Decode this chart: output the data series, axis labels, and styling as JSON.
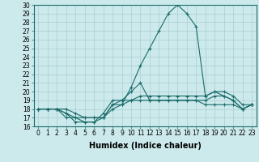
{
  "xlabel": "Humidex (Indice chaleur)",
  "ylabel": "",
  "xlim": [
    -0.5,
    23.5
  ],
  "ylim": [
    16,
    30
  ],
  "background_color": "#cce9eb",
  "grid_color": "#aacfd2",
  "line_color": "#1a6b6b",
  "xtick_labels": [
    "0",
    "1",
    "2",
    "3",
    "4",
    "5",
    "6",
    "7",
    "8",
    "9",
    "10",
    "11",
    "12",
    "13",
    "14",
    "15",
    "16",
    "17",
    "18",
    "19",
    "20",
    "21",
    "22",
    "23"
  ],
  "xticks": [
    0,
    1,
    2,
    3,
    4,
    5,
    6,
    7,
    8,
    9,
    10,
    11,
    12,
    13,
    14,
    15,
    16,
    17,
    18,
    19,
    20,
    21,
    22,
    23
  ],
  "yticks": [
    16,
    17,
    18,
    19,
    20,
    21,
    22,
    23,
    24,
    25,
    26,
    27,
    28,
    29,
    30
  ],
  "series": [
    [
      18.0,
      18.0,
      18.0,
      17.5,
      16.5,
      16.5,
      16.5,
      17.0,
      18.5,
      18.5,
      20.5,
      23.0,
      25.0,
      27.0,
      29.0,
      30.0,
      29.0,
      27.5,
      19.5,
      20.0,
      19.5,
      19.0,
      18.0,
      18.5
    ],
    [
      18.0,
      18.0,
      18.0,
      17.5,
      17.0,
      16.5,
      16.5,
      17.5,
      19.0,
      19.0,
      20.0,
      21.0,
      19.0,
      19.0,
      19.0,
      19.0,
      19.0,
      19.0,
      19.0,
      19.5,
      19.5,
      19.0,
      18.0,
      18.5
    ],
    [
      18.0,
      18.0,
      18.0,
      18.0,
      17.5,
      17.0,
      17.0,
      17.0,
      18.5,
      19.0,
      19.0,
      19.5,
      19.5,
      19.5,
      19.5,
      19.5,
      19.5,
      19.5,
      19.5,
      20.0,
      20.0,
      19.5,
      18.5,
      18.5
    ],
    [
      18.0,
      18.0,
      18.0,
      17.0,
      17.0,
      17.0,
      17.0,
      17.0,
      18.0,
      18.5,
      19.0,
      19.0,
      19.0,
      19.0,
      19.0,
      19.0,
      19.0,
      19.0,
      18.5,
      18.5,
      18.5,
      18.5,
      18.0,
      18.5
    ]
  ],
  "marker": "+",
  "markersize": 3,
  "linewidth": 0.8,
  "tick_fontsize": 5.5,
  "label_fontsize": 7
}
